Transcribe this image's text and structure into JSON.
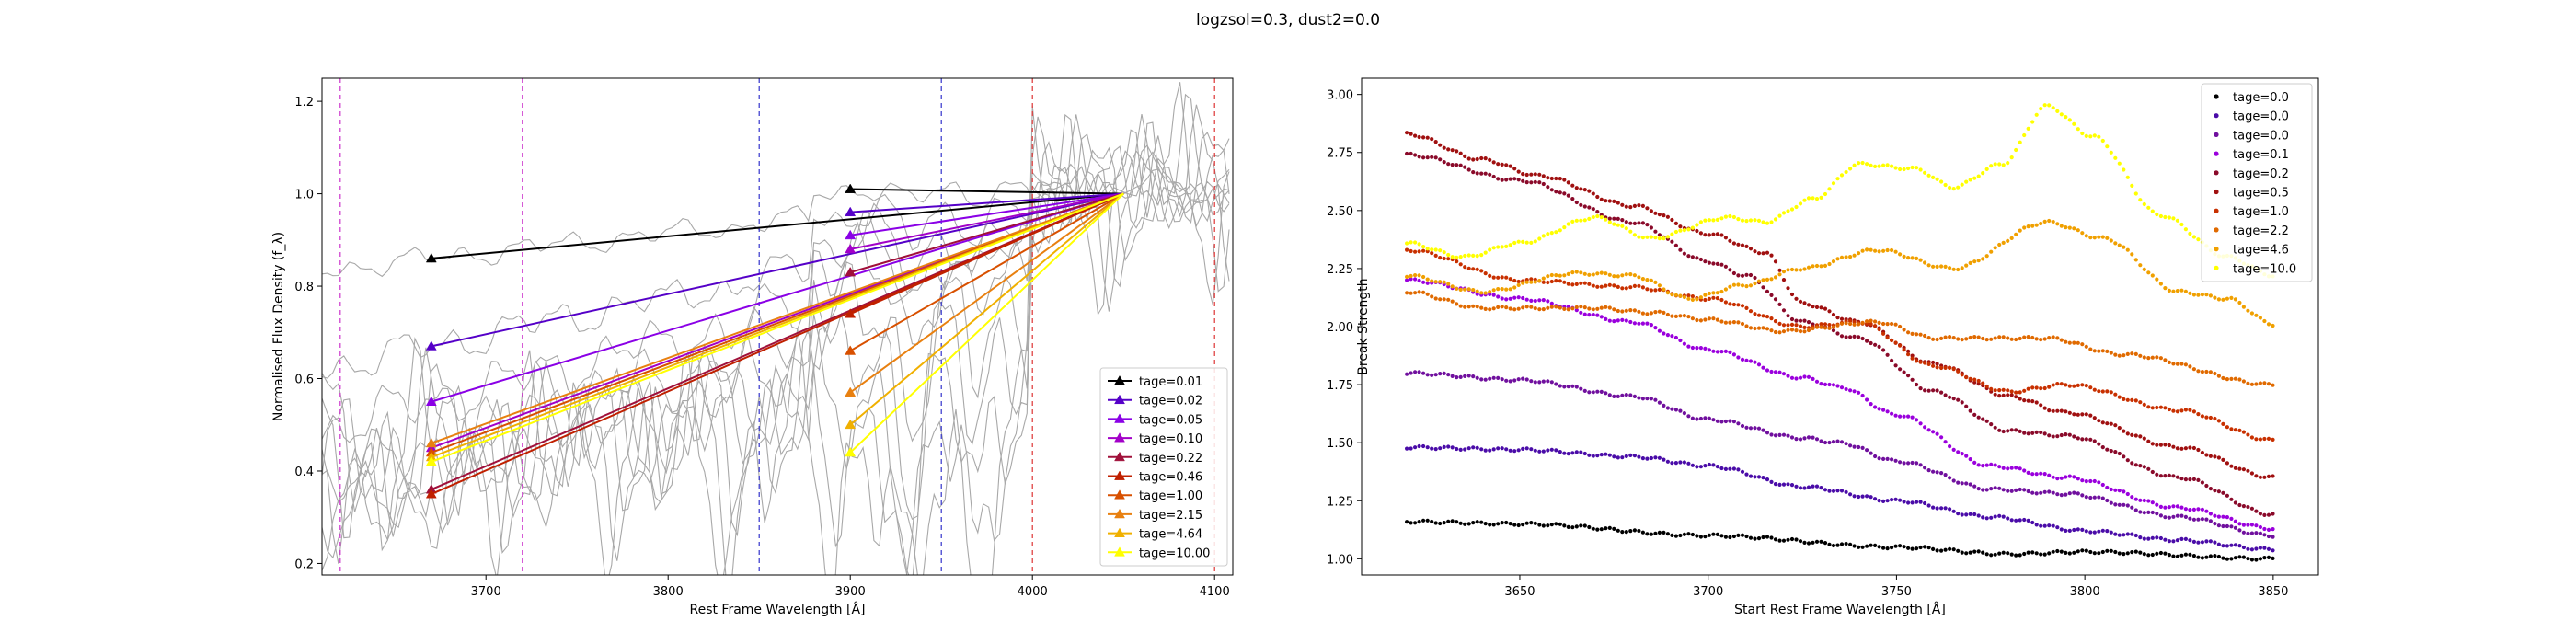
{
  "figure": {
    "suptitle": "logzsol=0.3, dust2=0.0"
  },
  "chart_data": [
    {
      "type": "line",
      "xlabel": "Rest Frame Wavelength [Å]",
      "ylabel": "Normalised Flux Density (f_λ)",
      "xlim": [
        3610,
        4110
      ],
      "ylim": [
        0.175,
        1.25
      ],
      "xticks": [
        3700,
        3800,
        3900,
        4000,
        4100
      ],
      "yticks": [
        0.2,
        0.4,
        0.6,
        0.8,
        1.0,
        1.2
      ],
      "ytick_labels": [
        "0.2",
        "0.4",
        "0.6",
        "0.8",
        "1.0",
        "1.2"
      ],
      "legend_position": "lower right",
      "anchor_point": {
        "x": 4050,
        "y": 1.0
      },
      "vlines": [
        {
          "x": 3620,
          "color": "#cc33cc"
        },
        {
          "x": 3720,
          "color": "#cc33cc"
        },
        {
          "x": 3850,
          "color": "#3333cc"
        },
        {
          "x": 3950,
          "color": "#3333cc"
        },
        {
          "x": 4000,
          "color": "#dd3333"
        },
        {
          "x": 4100,
          "color": "#dd3333"
        }
      ],
      "series": [
        {
          "name": "tage=0.01",
          "color": "#000000",
          "blue_point": {
            "x": 3670,
            "y": 0.86
          },
          "red_point": {
            "x": 3900,
            "y": 1.01
          }
        },
        {
          "name": "tage=0.02",
          "color": "#5500c8",
          "blue_point": {
            "x": 3670,
            "y": 0.67
          },
          "red_point": {
            "x": 3900,
            "y": 0.96
          }
        },
        {
          "name": "tage=0.05",
          "color": "#8a00e6",
          "blue_point": {
            "x": 3670,
            "y": 0.55
          },
          "red_point": {
            "x": 3900,
            "y": 0.91
          }
        },
        {
          "name": "tage=0.10",
          "color": "#a200c8",
          "blue_point": {
            "x": 3670,
            "y": 0.45
          },
          "red_point": {
            "x": 3900,
            "y": 0.88
          }
        },
        {
          "name": "tage=0.22",
          "color": "#a0103a",
          "blue_point": {
            "x": 3670,
            "y": 0.36
          },
          "red_point": {
            "x": 3900,
            "y": 0.83
          }
        },
        {
          "name": "tage=0.46",
          "color": "#c02000",
          "blue_point": {
            "x": 3670,
            "y": 0.35
          },
          "red_point": {
            "x": 3900,
            "y": 0.74
          }
        },
        {
          "name": "tage=1.00",
          "color": "#d85000",
          "blue_point": {
            "x": 3670,
            "y": 0.44
          },
          "red_point": {
            "x": 3900,
            "y": 0.66
          }
        },
        {
          "name": "tage=2.15",
          "color": "#e88010",
          "blue_point": {
            "x": 3670,
            "y": 0.46
          },
          "red_point": {
            "x": 3900,
            "y": 0.57
          }
        },
        {
          "name": "tage=4.64",
          "color": "#f0b000",
          "blue_point": {
            "x": 3670,
            "y": 0.43
          },
          "red_point": {
            "x": 3900,
            "y": 0.5
          }
        },
        {
          "name": "tage=10.00",
          "color": "#ffff00",
          "blue_point": {
            "x": 3670,
            "y": 0.42
          },
          "red_point": {
            "x": 3900,
            "y": 0.44
          }
        }
      ],
      "background_spectra_color": "#a8a8a8"
    },
    {
      "type": "scatter",
      "xlabel": "Start Rest Frame Wavelength [Å]",
      "ylabel": "Break Strength",
      "xlim": [
        3608,
        3862
      ],
      "ylim": [
        0.93,
        3.07
      ],
      "xticks": [
        3650,
        3700,
        3750,
        3800,
        3850
      ],
      "yticks": [
        1.0,
        1.25,
        1.5,
        1.75,
        2.0,
        2.25,
        2.5,
        2.75,
        3.0
      ],
      "ytick_labels": [
        "1.00",
        "1.25",
        "1.50",
        "1.75",
        "2.00",
        "2.25",
        "2.50",
        "2.75",
        "3.00"
      ],
      "legend_position": "upper right",
      "x_start": 3620,
      "x_end": 3850,
      "series": [
        {
          "name": "tage=0.0",
          "color": "#000000",
          "knots": [
            [
              3620,
              1.16
            ],
            [
              3650,
              1.15
            ],
            [
              3700,
              1.1
            ],
            [
              3750,
              1.05
            ],
            [
              3780,
              1.02
            ],
            [
              3800,
              1.03
            ],
            [
              3850,
              1.0
            ]
          ]
        },
        {
          "name": "tage=0.0",
          "color": "#4a0ca8",
          "knots": [
            [
              3620,
              1.48
            ],
            [
              3650,
              1.47
            ],
            [
              3680,
              1.44
            ],
            [
              3700,
              1.4
            ],
            [
              3725,
              1.31
            ],
            [
              3750,
              1.25
            ],
            [
              3775,
              1.18
            ],
            [
              3800,
              1.12
            ],
            [
              3825,
              1.08
            ],
            [
              3850,
              1.04
            ]
          ]
        },
        {
          "name": "tage=0.0",
          "color": "#70109e",
          "knots": [
            [
              3620,
              1.8
            ],
            [
              3650,
              1.77
            ],
            [
              3680,
              1.7
            ],
            [
              3700,
              1.6
            ],
            [
              3725,
              1.52
            ],
            [
              3735,
              1.5
            ],
            [
              3750,
              1.42
            ],
            [
              3775,
              1.3
            ],
            [
              3795,
              1.28
            ],
            [
              3825,
              1.18
            ],
            [
              3850,
              1.1
            ]
          ]
        },
        {
          "name": "tage=0.1",
          "color": "#9a00dd",
          "knots": [
            [
              3620,
              2.2
            ],
            [
              3650,
              2.12
            ],
            [
              3680,
              2.02
            ],
            [
              3700,
              1.9
            ],
            [
              3725,
              1.78
            ],
            [
              3735,
              1.74
            ],
            [
              3750,
              1.62
            ],
            [
              3775,
              1.4
            ],
            [
              3795,
              1.35
            ],
            [
              3825,
              1.22
            ],
            [
              3850,
              1.13
            ]
          ]
        },
        {
          "name": "tage=0.2",
          "color": "#8a0a2a",
          "knots": [
            [
              3620,
              2.74
            ],
            [
              3650,
              2.63
            ],
            [
              3680,
              2.45
            ],
            [
              3700,
              2.28
            ],
            [
              3710,
              2.22
            ],
            [
              3725,
              2.02
            ],
            [
              3740,
              1.95
            ],
            [
              3760,
              1.72
            ],
            [
              3780,
              1.55
            ],
            [
              3795,
              1.53
            ],
            [
              3825,
              1.35
            ],
            [
              3850,
              1.19
            ]
          ]
        },
        {
          "name": "tage=0.5",
          "color": "#a01010",
          "knots": [
            [
              3620,
              2.83
            ],
            [
              3640,
              2.72
            ],
            [
              3655,
              2.65
            ],
            [
              3680,
              2.52
            ],
            [
              3700,
              2.4
            ],
            [
              3715,
              2.32
            ],
            [
              3725,
              2.1
            ],
            [
              3740,
              2.02
            ],
            [
              3760,
              1.84
            ],
            [
              3780,
              1.7
            ],
            [
              3795,
              1.63
            ],
            [
              3825,
              1.48
            ],
            [
              3850,
              1.35
            ]
          ]
        },
        {
          "name": "tage=1.0",
          "color": "#c83000",
          "knots": [
            [
              3620,
              2.33
            ],
            [
              3650,
              2.2
            ],
            [
              3680,
              2.17
            ],
            [
              3700,
              2.12
            ],
            [
              3725,
              2.0
            ],
            [
              3740,
              2.02
            ],
            [
              3760,
              1.83
            ],
            [
              3780,
              1.72
            ],
            [
              3795,
              1.75
            ],
            [
              3825,
              1.64
            ],
            [
              3850,
              1.51
            ]
          ]
        },
        {
          "name": "tage=2.2",
          "color": "#e06a00",
          "knots": [
            [
              3620,
              2.15
            ],
            [
              3640,
              2.08
            ],
            [
              3670,
              2.08
            ],
            [
              3685,
              2.06
            ],
            [
              3700,
              2.03
            ],
            [
              3720,
              1.98
            ],
            [
              3745,
              2.02
            ],
            [
              3760,
              1.95
            ],
            [
              3790,
              1.95
            ],
            [
              3810,
              1.88
            ],
            [
              3850,
              1.75
            ]
          ]
        },
        {
          "name": "tage=4.6",
          "color": "#f0a000",
          "knots": [
            [
              3620,
              2.22
            ],
            [
              3640,
              2.15
            ],
            [
              3665,
              2.23
            ],
            [
              3680,
              2.22
            ],
            [
              3695,
              2.12
            ],
            [
              3710,
              2.18
            ],
            [
              3725,
              2.25
            ],
            [
              3745,
              2.33
            ],
            [
              3765,
              2.25
            ],
            [
              3790,
              2.45
            ],
            [
              3805,
              2.38
            ],
            [
              3825,
              2.15
            ],
            [
              3838,
              2.12
            ],
            [
              3850,
              2.01
            ]
          ]
        },
        {
          "name": "tage=10.0",
          "color": "#ffff00",
          "knots": [
            [
              3620,
              2.36
            ],
            [
              3635,
              2.3
            ],
            [
              3650,
              2.36
            ],
            [
              3670,
              2.47
            ],
            [
              3685,
              2.38
            ],
            [
              3705,
              2.47
            ],
            [
              3715,
              2.45
            ],
            [
              3728,
              2.55
            ],
            [
              3740,
              2.7
            ],
            [
              3755,
              2.68
            ],
            [
              3765,
              2.6
            ],
            [
              3778,
              2.7
            ],
            [
              3790,
              2.95
            ],
            [
              3802,
              2.82
            ],
            [
              3820,
              2.48
            ],
            [
              3838,
              2.3
            ],
            [
              3850,
              2.22
            ]
          ]
        }
      ]
    }
  ]
}
